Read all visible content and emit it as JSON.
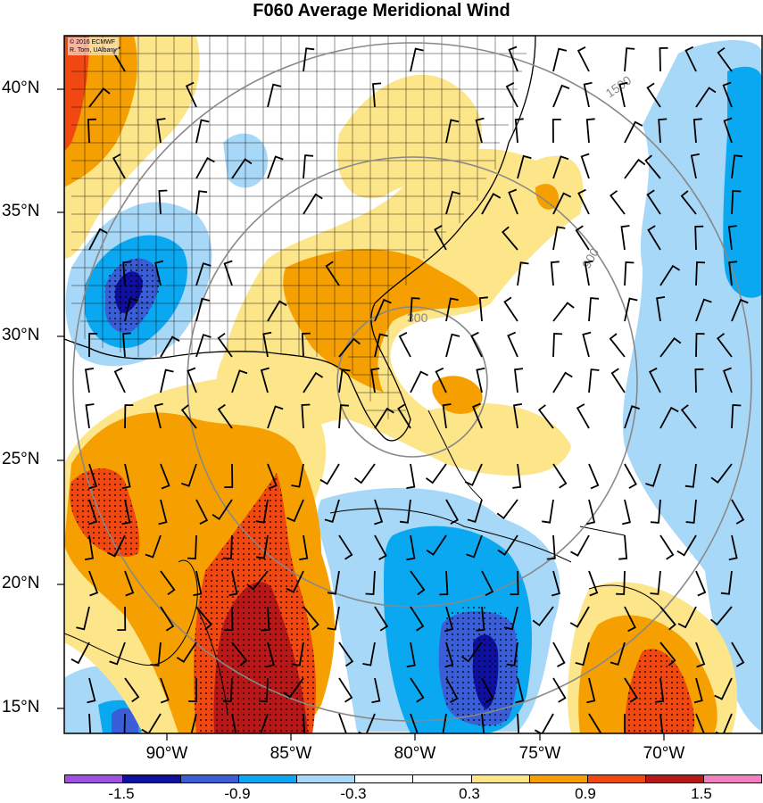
{
  "title": "F060 Average Meridional Wind",
  "credit": {
    "line1": "© 2016 ECMWF",
    "line2": "R. Torn, UAlbany"
  },
  "lat_labels": [
    "40°N",
    "35°N",
    "30°N",
    "25°N",
    "20°N",
    "15°N"
  ],
  "lon_labels": [
    "90°W",
    "85°W",
    "80°W",
    "75°W",
    "70°W"
  ],
  "range_ring_labels": [
    "300",
    "900",
    "1500"
  ],
  "colorbar": {
    "colors": [
      "#a050e0",
      "#1010a0",
      "#3a5ed8",
      "#0aa8f0",
      "#a8d8f8",
      "#ffffff",
      "#ffffff",
      "#fde58a",
      "#f5a000",
      "#f04810",
      "#b81818",
      "#f080c0"
    ],
    "labels": [
      "-1.5",
      "-0.9",
      "-0.3",
      "0.3",
      "0.9",
      "1.5"
    ]
  },
  "map_extent": {
    "lon_min": -94.4,
    "lon_max": -65.5,
    "lat_min": 14.0,
    "lat_max": 42.0
  },
  "center": {
    "lon": -79.5,
    "lat": 28.0
  }
}
